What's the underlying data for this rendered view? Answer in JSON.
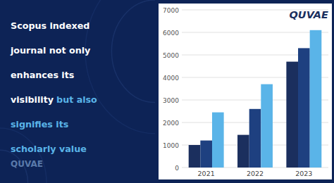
{
  "chart_data": {
    "type": "bar",
    "categories": [
      "2021",
      "2022",
      "2023"
    ],
    "series": [
      {
        "color": "#1b2f5e",
        "values": [
          1000,
          1450,
          4700
        ]
      },
      {
        "color": "#1e4080",
        "values": [
          1200,
          2600,
          5300
        ]
      },
      {
        "color": "#5ab4e8",
        "values": [
          2450,
          3700,
          6100
        ]
      }
    ],
    "ylim": [
      0,
      7000
    ],
    "yticks": [
      0,
      1000,
      2000,
      3000,
      4000,
      5000,
      6000,
      7000
    ],
    "grid": true,
    "annotations": [
      [
        {
          "text": "Scopus indexed",
          "color": "#ffffff"
        }
      ],
      [
        {
          "text": "journal not only",
          "color": "#ffffff"
        }
      ],
      [
        {
          "text": "enhances its",
          "color": "#ffffff"
        }
      ],
      [
        {
          "text": "visibility",
          "color": "#ffffff"
        },
        {
          "text": "but also",
          "color": "#5ab4e8"
        }
      ],
      [
        {
          "text": "signifies its",
          "color": "#5ab4e8"
        }
      ],
      [
        {
          "text": "scholarly value",
          "color": "#5ab4e8"
        }
      ],
      [
        {
          "text": "QUVAE",
          "color": "#5a7aaa"
        }
      ],
      [
        {
          "text": "QUVAE",
          "color": "#1b2f5e"
        }
      ]
    ]
  }
}
